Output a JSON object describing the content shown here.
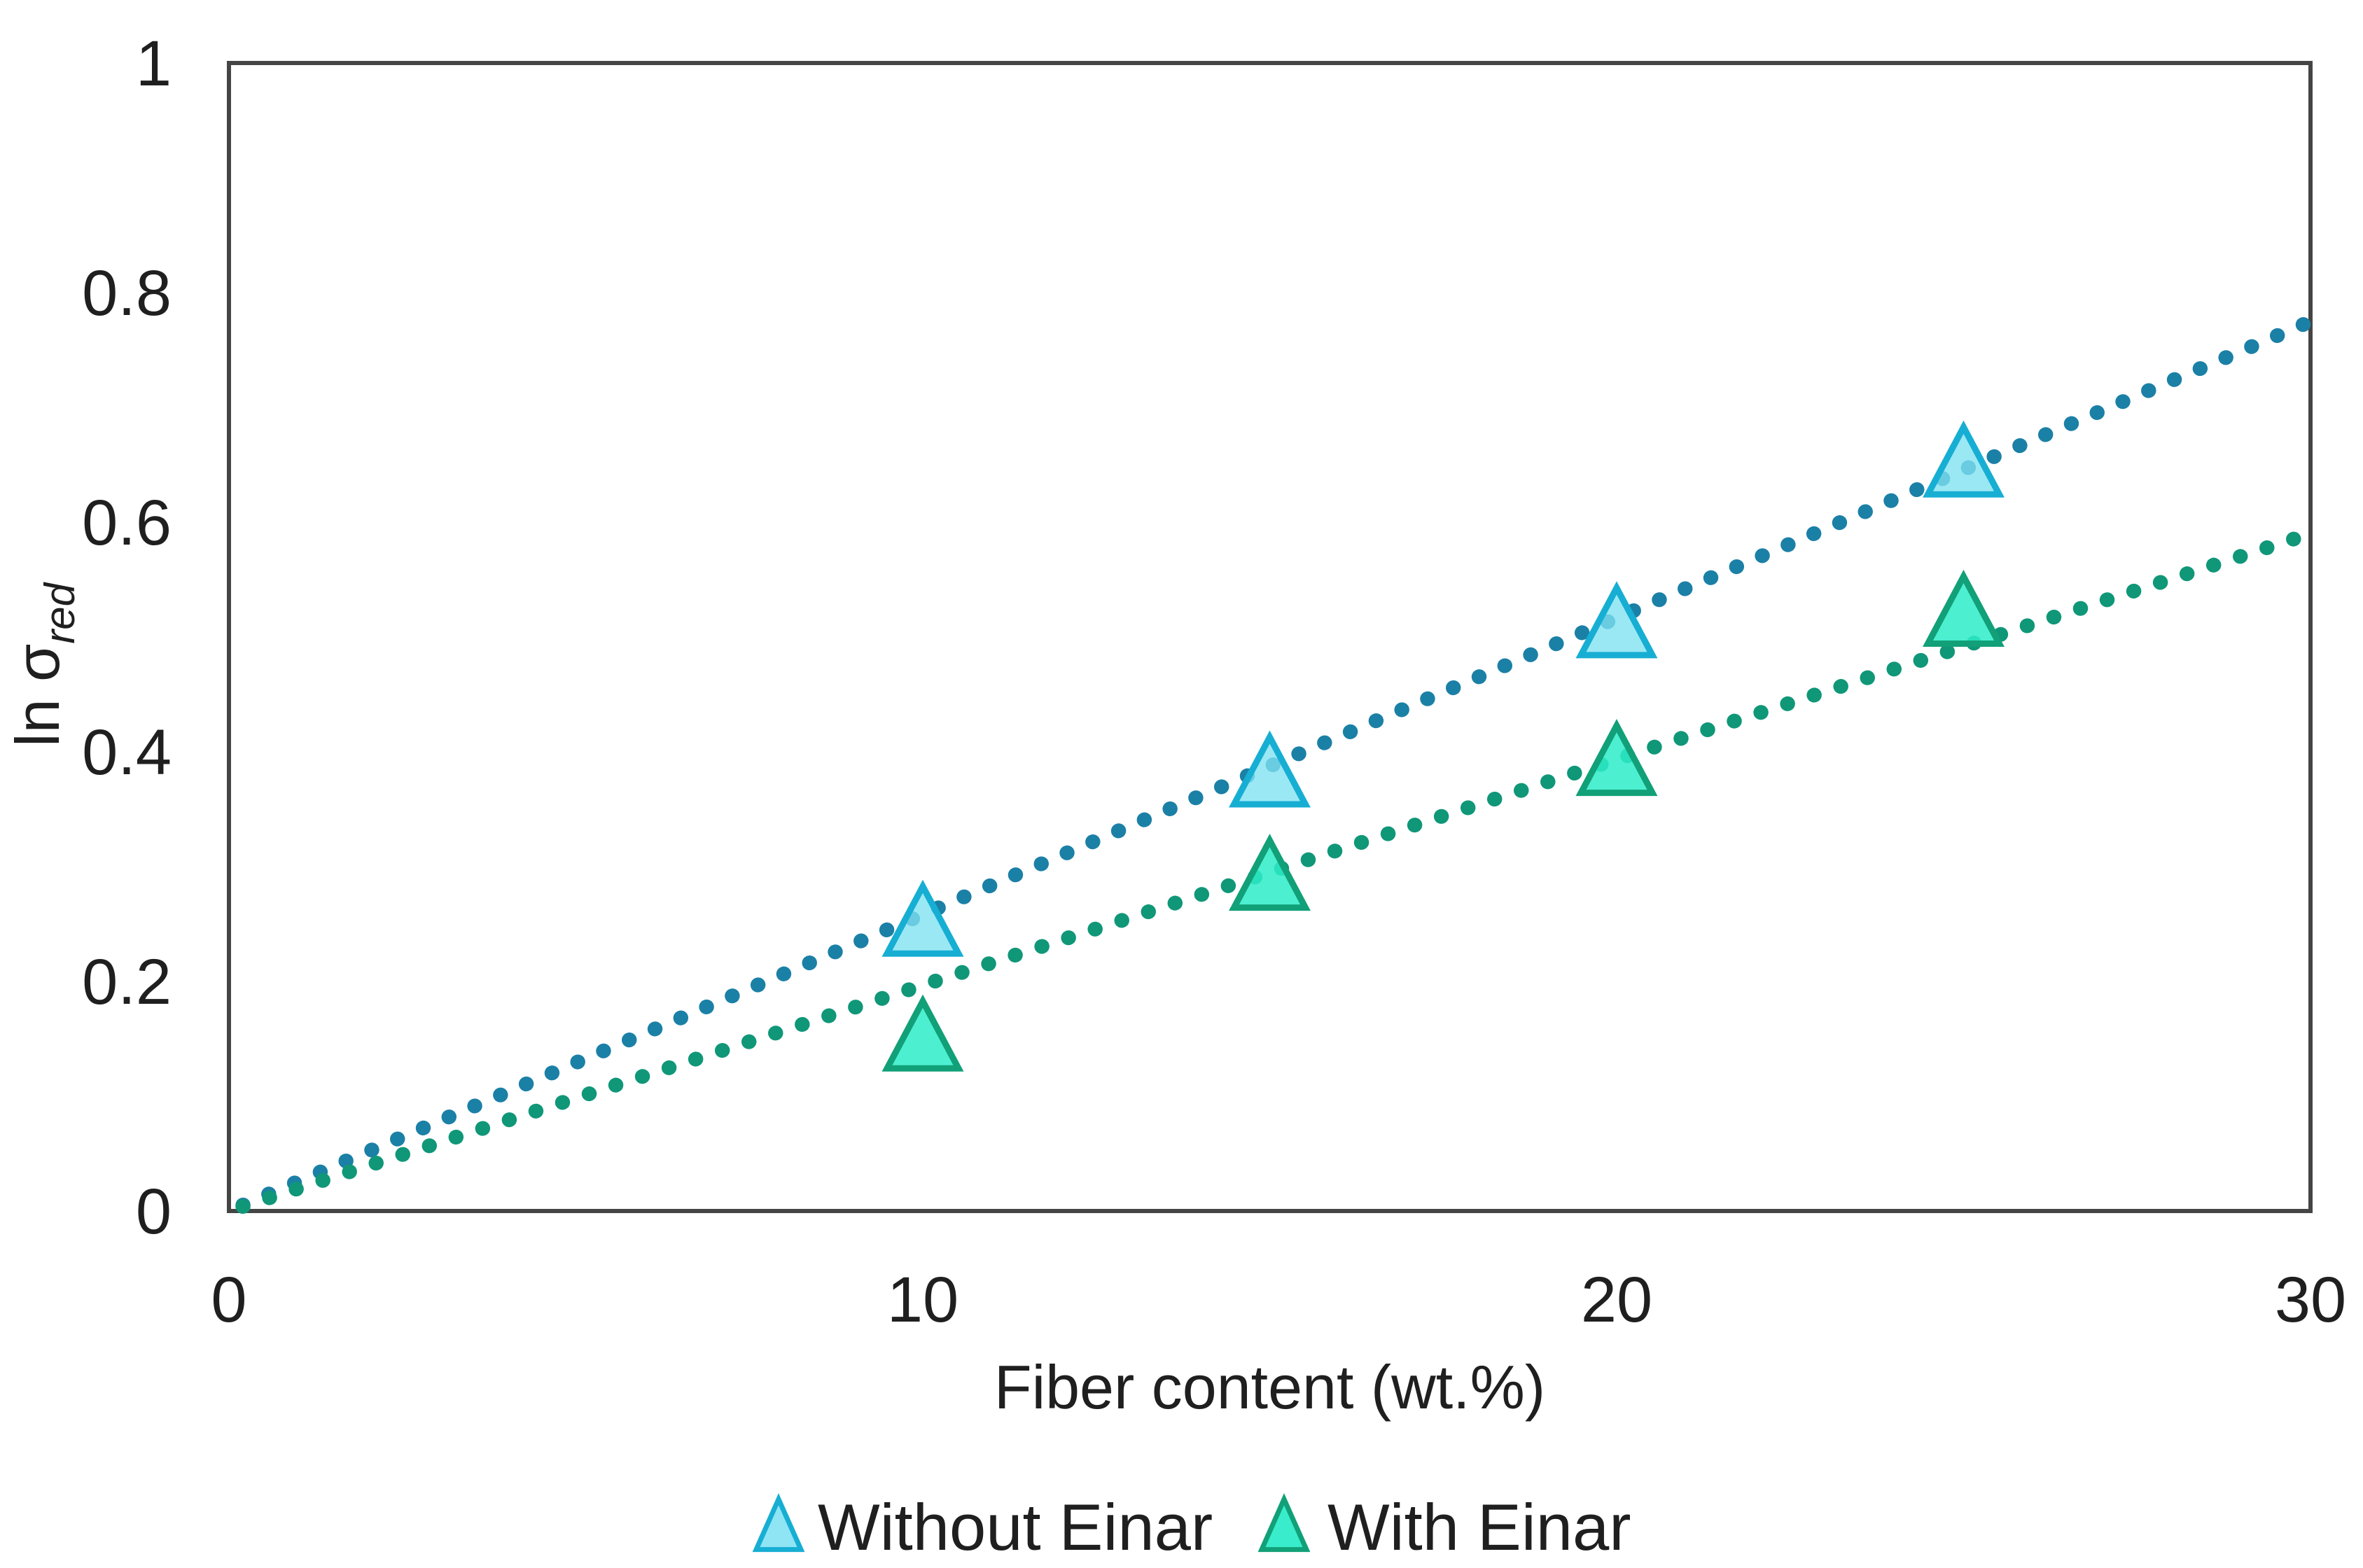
{
  "chart_data": {
    "type": "scatter",
    "title": "",
    "xlabel": "Fiber content (wt.%)",
    "ylabel_main": "ln σ",
    "ylabel_sub": "red",
    "xlim": [
      0,
      30
    ],
    "ylim": [
      0,
      1
    ],
    "x_ticks": [
      "0",
      "10",
      "20",
      "30"
    ],
    "x_tick_values": [
      0,
      10,
      20,
      30
    ],
    "y_ticks": [
      "0",
      "0.2",
      "0.4",
      "0.6",
      "0.8",
      "1"
    ],
    "y_tick_values": [
      0,
      0.2,
      0.4,
      0.6,
      0.8,
      1
    ],
    "grid": false,
    "legend_position": "bottom-center",
    "axis_color": "#454545",
    "text_color": "#1f1f1f",
    "series": [
      {
        "name": "Without Einar",
        "x": [
          10,
          15,
          20,
          25
        ],
        "y": [
          0.25,
          0.38,
          0.51,
          0.65
        ],
        "marker": "triangle",
        "marker_fill": "#7fe1f2",
        "marker_fill_opacity": 0.78,
        "marker_stroke": "#17aed3",
        "trendline": {
          "style": "dotted",
          "intercept": 0,
          "slope": 0.02583,
          "x_start": 0.2,
          "x_end": 30,
          "color": "#1b80a6"
        }
      },
      {
        "name": "With Einar",
        "x": [
          10,
          15,
          20,
          25
        ],
        "y": [
          0.15,
          0.29,
          0.39,
          0.52
        ],
        "marker": "triangle",
        "marker_fill": "#2eecc9",
        "marker_fill_opacity": 0.85,
        "marker_stroke": "#11a078",
        "trendline": {
          "style": "dotted",
          "intercept": 0,
          "slope": 0.01967,
          "x_start": 0.2,
          "x_end": 30,
          "color": "#0f9778"
        }
      }
    ]
  }
}
